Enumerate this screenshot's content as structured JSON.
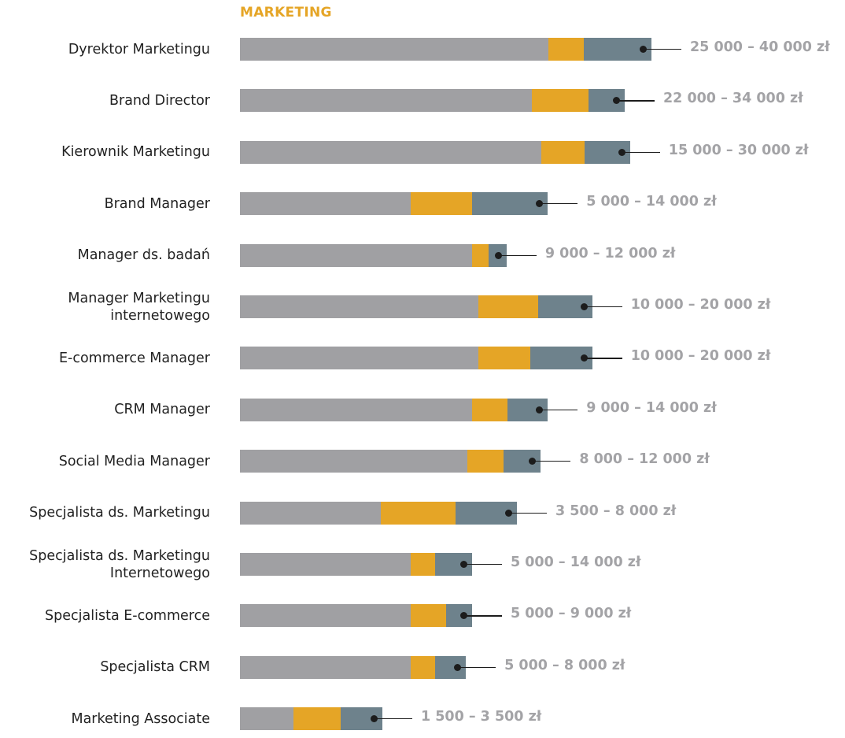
{
  "chart_data": {
    "type": "bar",
    "orientation": "horizontal",
    "stacked": true,
    "title": "MARKETING",
    "value_units": "relative bar length (percent of longest bar)",
    "colors": {
      "segment_1": "#a0a0a3",
      "segment_2": "#e5a526",
      "segment_3": "#6e828c",
      "title": "#e5a526",
      "range_label": "#a3a3a6"
    },
    "categories": [
      "Dyrektor Marketingu",
      "Brand Director",
      "Kierownik Marketingu",
      "Brand Manager",
      "Manager ds. badań",
      "Manager Marketingu\ninternetowego",
      "E-commerce Manager",
      "CRM Manager",
      "Social Media Manager",
      "Specjalista ds. Marketingu",
      "Specjalista ds. Marketingu\nInternetowego",
      "Specjalista E-commerce",
      "Specjalista CRM",
      "Marketing Associate"
    ],
    "series": [
      {
        "values": [
          75.0,
          70.9,
          73.2,
          41.5,
          56.4,
          57.9,
          57.9,
          56.4,
          55.3,
          34.2,
          41.5,
          41.5,
          41.5,
          13.0
        ]
      },
      {
        "values": [
          8.6,
          13.8,
          10.5,
          14.9,
          4.0,
          14.5,
          12.6,
          8.6,
          8.8,
          18.2,
          5.9,
          8.6,
          5.9,
          11.5
        ]
      },
      {
        "values": [
          16.4,
          8.8,
          11.1,
          18.4,
          4.4,
          13.2,
          15.1,
          9.8,
          9.0,
          14.9,
          9.0,
          6.3,
          7.5,
          10.1
        ]
      }
    ],
    "data_labels": [
      "25 000 – 40 000 zł",
      "22 000 – 34 000 zł",
      "15 000 – 30 000 zł",
      "5 000 – 14 000 zł",
      "9 000 – 12 000 zł",
      "10 000 – 20 000 zł",
      "10 000 – 20 000 zł",
      "9 000 – 14 000 zł",
      "8 000 – 12 000 zł",
      "3 500 – 8 000 zł",
      "5 000 – 14 000 zł",
      "5 000 – 9 000 zł",
      "5 000 – 8 000 zł",
      "1 500 – 3 500 zł"
    ],
    "grid": false,
    "legend": "none"
  }
}
